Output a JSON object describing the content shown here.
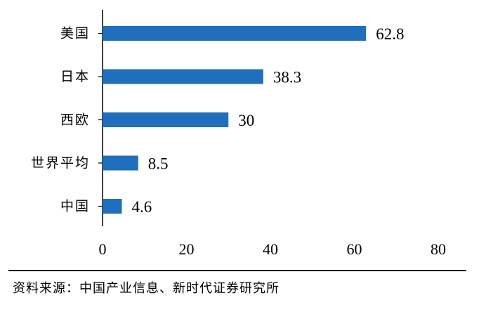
{
  "chart_data": {
    "type": "bar",
    "orientation": "horizontal",
    "categories": [
      "美国",
      "日本",
      "西欧",
      "世界平均",
      "中国"
    ],
    "values": [
      62.8,
      38.3,
      30,
      8.5,
      4.6
    ],
    "value_labels": [
      "62.8",
      "38.3",
      "30",
      "8.5",
      "4.6"
    ],
    "xlim": [
      0,
      80
    ],
    "xticks": [
      "0",
      "20",
      "40",
      "60",
      "80"
    ],
    "title": "",
    "xlabel": "",
    "ylabel": "",
    "grid": false,
    "legend": "none",
    "bar_color": "#1f6fbd"
  },
  "source_note": "资料来源：中国产业信息、新时代证券研究所"
}
